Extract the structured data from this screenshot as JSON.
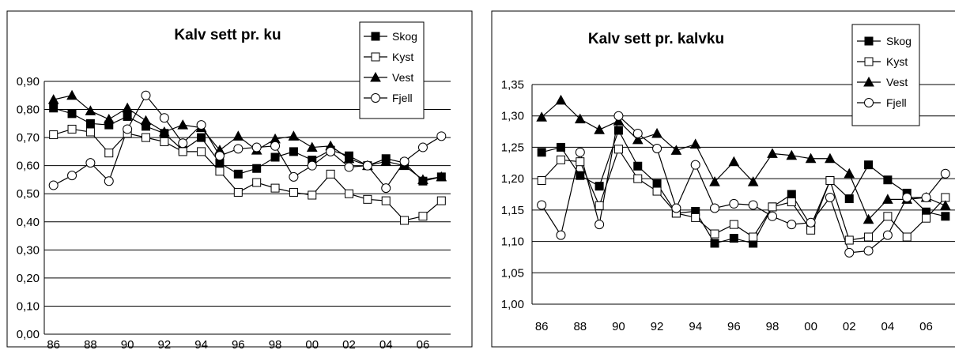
{
  "chart_data": [
    {
      "type": "line",
      "title": "Kalv sett pr. ku",
      "xlabel": "",
      "ylabel": "",
      "x": [
        "86",
        "87",
        "88",
        "89",
        "90",
        "91",
        "92",
        "93",
        "94",
        "95",
        "96",
        "97",
        "98",
        "99",
        "00",
        "01",
        "02",
        "03",
        "04",
        "05",
        "06",
        "07"
      ],
      "x_tick_labels": [
        "86",
        "88",
        "90",
        "92",
        "94",
        "96",
        "98",
        "00",
        "02",
        "04",
        "06"
      ],
      "ylim": [
        0.0,
        0.9
      ],
      "y_tick_labels": [
        "0,00",
        "0,10",
        "0,20",
        "0,30",
        "0,40",
        "0,50",
        "0,60",
        "0,70",
        "0,80",
        "0,90"
      ],
      "grid": "horizontal",
      "legend_position": "top-right",
      "series": [
        {
          "name": "Skog",
          "marker": "filled-square",
          "values": [
            0.805,
            0.785,
            0.75,
            0.745,
            0.775,
            0.74,
            0.715,
            0.655,
            0.7,
            0.61,
            0.57,
            0.59,
            0.63,
            0.65,
            0.62,
            0.655,
            0.635,
            0.6,
            0.625,
            0.61,
            0.545,
            0.56
          ]
        },
        {
          "name": "Kyst",
          "marker": "open-square",
          "values": [
            0.71,
            0.73,
            0.72,
            0.645,
            0.715,
            0.7,
            0.685,
            0.65,
            0.65,
            0.58,
            0.505,
            0.54,
            0.52,
            0.505,
            0.495,
            0.57,
            0.5,
            0.48,
            0.475,
            0.405,
            0.42,
            0.475
          ]
        },
        {
          "name": "Vest",
          "marker": "filled-triangle",
          "values": [
            0.835,
            0.85,
            0.795,
            0.765,
            0.805,
            0.76,
            0.72,
            0.745,
            0.735,
            0.655,
            0.705,
            0.655,
            0.695,
            0.705,
            0.665,
            0.67,
            0.625,
            0.6,
            0.615,
            0.6,
            0.55,
            0.56
          ]
        },
        {
          "name": "Fjell",
          "marker": "open-circle",
          "values": [
            0.53,
            0.565,
            0.61,
            0.545,
            0.73,
            0.85,
            0.77,
            0.68,
            0.745,
            0.635,
            0.66,
            0.665,
            0.67,
            0.56,
            0.6,
            0.65,
            0.595,
            0.6,
            0.52,
            0.615,
            0.665,
            0.705
          ]
        }
      ]
    },
    {
      "type": "line",
      "title": "Kalv sett pr. kalvku",
      "xlabel": "",
      "ylabel": "",
      "x": [
        "86",
        "87",
        "88",
        "89",
        "90",
        "91",
        "92",
        "93",
        "94",
        "95",
        "96",
        "97",
        "98",
        "99",
        "00",
        "01",
        "02",
        "03",
        "04",
        "05",
        "06",
        "07"
      ],
      "x_tick_labels": [
        "86",
        "88",
        "90",
        "92",
        "94",
        "96",
        "98",
        "00",
        "02",
        "04",
        "06"
      ],
      "ylim": [
        1.0,
        1.35
      ],
      "y_tick_labels": [
        "1,00",
        "1,05",
        "1,10",
        "1,15",
        "1,20",
        "1,25",
        "1,30",
        "1,35"
      ],
      "grid": "horizontal",
      "legend_position": "top-right",
      "series": [
        {
          "name": "Skog",
          "marker": "filled-square",
          "values": [
            1.242,
            1.25,
            1.205,
            1.188,
            1.277,
            1.22,
            1.192,
            1.145,
            1.148,
            1.097,
            1.105,
            1.097,
            1.155,
            1.175,
            1.125,
            1.197,
            1.168,
            1.222,
            1.198,
            1.177,
            1.147,
            1.14
          ]
        },
        {
          "name": "Kyst",
          "marker": "open-square",
          "values": [
            1.197,
            1.23,
            1.227,
            1.157,
            1.247,
            1.2,
            1.18,
            1.145,
            1.138,
            1.112,
            1.127,
            1.107,
            1.155,
            1.163,
            1.118,
            1.197,
            1.102,
            1.107,
            1.14,
            1.107,
            1.137,
            1.17
          ]
        },
        {
          "name": "Vest",
          "marker": "filled-triangle",
          "values": [
            1.298,
            1.325,
            1.295,
            1.278,
            1.292,
            1.262,
            1.272,
            1.245,
            1.255,
            1.195,
            1.227,
            1.195,
            1.24,
            1.237,
            1.232,
            1.232,
            1.208,
            1.135,
            1.167,
            1.167,
            1.17,
            1.157
          ]
        },
        {
          "name": "Fjell",
          "marker": "open-circle",
          "values": [
            1.158,
            1.11,
            1.242,
            1.127,
            1.3,
            1.272,
            1.248,
            1.153,
            1.222,
            1.153,
            1.16,
            1.158,
            1.14,
            1.127,
            1.13,
            1.17,
            1.082,
            1.085,
            1.11,
            1.17,
            1.17,
            1.208
          ]
        }
      ]
    }
  ]
}
